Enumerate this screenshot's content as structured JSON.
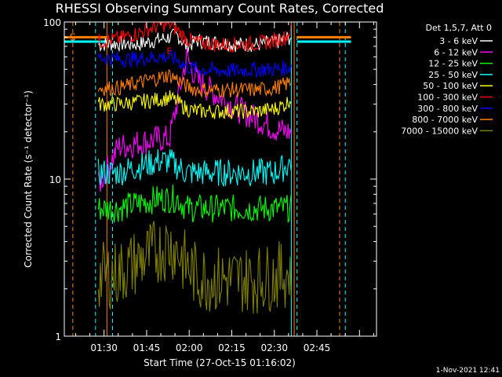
{
  "chart_data": {
    "type": "line",
    "title": "RHESSI Observing Summary Count Rates, Corrected",
    "xlabel": "Start Time (27-Oct-15 01:16:02)",
    "ylabel": "Corrected Count Rate (s⁻¹ detector⁻¹)",
    "y_scale": "log",
    "ylim": [
      1,
      100
    ],
    "xlim": [
      "01:16",
      "03:06"
    ],
    "x_ticks": [
      "01:30",
      "01:45",
      "02:00",
      "02:15",
      "02:30",
      "02:45"
    ],
    "y_ticks": [
      "1",
      "10",
      "100"
    ],
    "legend_title": "Det 1,5,7, Att 0",
    "legend_position": "right",
    "x": [
      "01:28",
      "01:35",
      "01:42",
      "01:49",
      "01:53",
      "01:56",
      "01:59",
      "02:03",
      "02:10",
      "02:17",
      "02:24",
      "02:30",
      "02:34",
      "02:36"
    ],
    "series": [
      {
        "name": "3 - 6 keV",
        "color": "#ffffff",
        "values": [
          72,
          73,
          72,
          77,
          80,
          82,
          70,
          76,
          74,
          72,
          72,
          74,
          78,
          80
        ]
      },
      {
        "name": "6 - 12 keV",
        "color": "#ff00ff",
        "values": [
          9,
          16,
          17,
          18,
          18,
          32,
          60,
          42,
          34,
          28,
          24,
          21,
          20,
          20
        ]
      },
      {
        "name": "12 - 25 keV",
        "color": "#00ff00",
        "values": [
          6.5,
          6.5,
          7,
          7.5,
          7.5,
          7.5,
          6.5,
          6.5,
          6.5,
          6.5,
          6.5,
          6.5,
          6.5,
          6.5
        ]
      },
      {
        "name": "25 - 50 keV",
        "color": "#00ffff",
        "values": [
          11,
          11,
          12,
          13,
          13,
          12,
          11,
          11,
          11,
          11,
          11,
          11,
          12,
          13
        ]
      },
      {
        "name": "50 - 100 keV",
        "color": "#ffff00",
        "values": [
          30,
          30,
          31,
          32,
          33,
          31,
          28,
          27,
          27,
          27,
          27,
          28,
          30,
          33
        ]
      },
      {
        "name": "100 - 300 keV",
        "color": "#ff0000",
        "values": [
          75,
          78,
          85,
          95,
          98,
          88,
          78,
          74,
          72,
          72,
          73,
          76,
          80,
          90
        ]
      },
      {
        "name": "300 - 800 keV",
        "color": "#0000ff",
        "values": [
          60,
          58,
          58,
          60,
          60,
          57,
          52,
          50,
          49,
          49,
          50,
          50,
          51,
          52
        ]
      },
      {
        "name": "800 - 7000 keV",
        "color": "#ff8000",
        "values": [
          38,
          38,
          41,
          44,
          46,
          43,
          39,
          37,
          37,
          37,
          37,
          38,
          40,
          42
        ]
      },
      {
        "name": "7000 - 15000 keV",
        "color": "#808000",
        "values": [
          2.4,
          2.5,
          3,
          3.5,
          3.8,
          3.5,
          2.8,
          2.4,
          2.3,
          2.3,
          2.3,
          2.4,
          2.5,
          2.6
        ]
      }
    ],
    "markers": [
      {
        "label": "S",
        "time": "01:19",
        "color": "#ff8000",
        "level": 80
      },
      {
        "label": "F",
        "time": "01:53",
        "color": "#ff0000",
        "level": 65
      }
    ],
    "footer": "1-Nov-2021 12:41"
  }
}
